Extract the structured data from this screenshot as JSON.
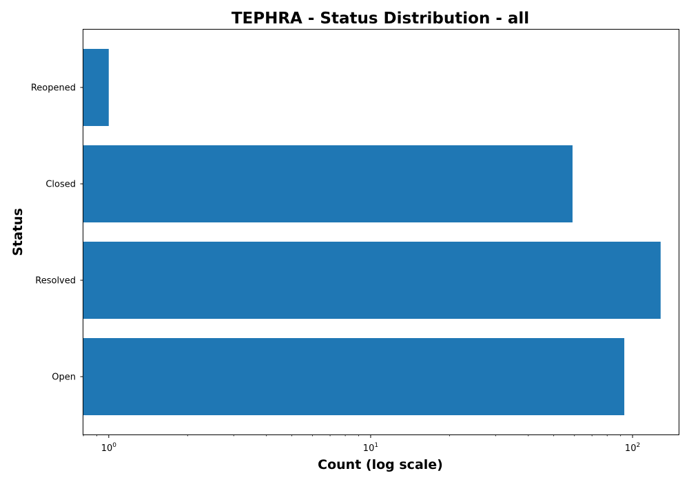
{
  "chart_data": {
    "type": "bar",
    "orientation": "horizontal",
    "title": "TEPHRA - Status Distribution - all",
    "xlabel": "Count (log scale)",
    "ylabel": "Status",
    "x_scale": "log",
    "xlim": [
      0.8,
      150
    ],
    "x_ticks": [
      {
        "value": 1,
        "base": "10",
        "exp": "0"
      },
      {
        "value": 10,
        "base": "10",
        "exp": "1"
      },
      {
        "value": 100,
        "base": "10",
        "exp": "2"
      }
    ],
    "categories": [
      "Open",
      "Resolved",
      "Closed",
      "Reopened"
    ],
    "values": [
      93,
      128,
      59,
      1
    ],
    "bar_color": "#1f77b4",
    "grid": false,
    "legend": "none"
  }
}
